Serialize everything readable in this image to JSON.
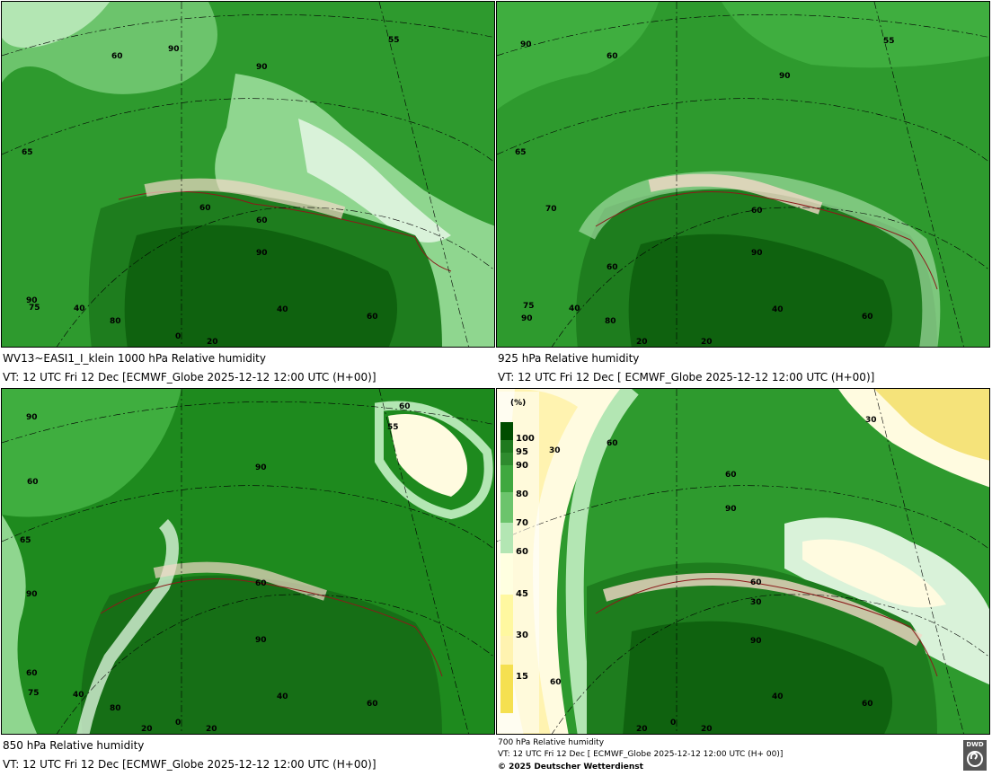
{
  "panels": [
    {
      "caption_line1": "WV13~EASI1_I_klein 1000 hPa Relative humidity",
      "caption_line2": "VT: 12 UTC Fri  12 Dec [ECMWF_Globe 2025-12-12 12:00 UTC  (H+00)]",
      "labels": [
        "90",
        "55",
        "60",
        "90",
        "65",
        "60",
        "60",
        "90",
        "90",
        "75",
        "40",
        "80",
        "0",
        "20",
        "40",
        "60"
      ]
    },
    {
      "caption_line1": "925 hPa Relative humidity",
      "caption_line2": "VT: 12 UTC Fri  12 Dec [ ECMWF_Globe 2025-12-12 12:00 UTC (H+00)]",
      "labels": [
        "90",
        "55",
        "60",
        "90",
        "65",
        "70",
        "60",
        "60",
        "90",
        "75",
        "90",
        "40",
        "80",
        "20",
        "20",
        "40",
        "60"
      ]
    },
    {
      "caption_line1": "850 hPa  Relative humidity",
      "caption_line2": "VT: 12 UTC Fri  12 Dec [ECMWF_Globe 2025-12-12 12:00 UTC (H+00)]",
      "labels": [
        "90",
        "60",
        "55",
        "60",
        "90",
        "65",
        "90",
        "60",
        "90",
        "60",
        "75",
        "40",
        "80",
        "20",
        "0",
        "20",
        "40",
        "60"
      ]
    },
    {
      "caption_line1": "700 hPa Relative humidity",
      "caption_line2": "VT: 12 UTC Fri  12 Dec [ ECMWF_Globe 2025-12-12 12:00 UTC  (H+ 00)]",
      "caption_line3": "© 2025 Deutscher Wetterdienst",
      "labels": [
        "30",
        "60",
        "30",
        "60",
        "90",
        "60",
        "30",
        "90",
        "60",
        "20",
        "0",
        "20",
        "40",
        "60"
      ]
    }
  ],
  "legend": {
    "unit": "(%)",
    "ticks": [
      "100",
      "95",
      "90",
      "80",
      "70",
      "60",
      "45",
      "30",
      "15"
    ],
    "colors": [
      "#004d00",
      "#1f7a1f",
      "#2e8b2e",
      "#3fa83f",
      "#6cc46c",
      "#b3e6b3",
      "#ffffe0",
      "#fff8a0",
      "#f5e050"
    ]
  },
  "logo": {
    "text": "DWD"
  },
  "colors": {
    "very_high": "#0a5e0a",
    "high": "#1e8a1e",
    "mid": "#3fae3f",
    "low": "#8fd68f",
    "pale": "#d9f2d9",
    "dry": "#fffbe0",
    "border": "#8b1a1a"
  }
}
